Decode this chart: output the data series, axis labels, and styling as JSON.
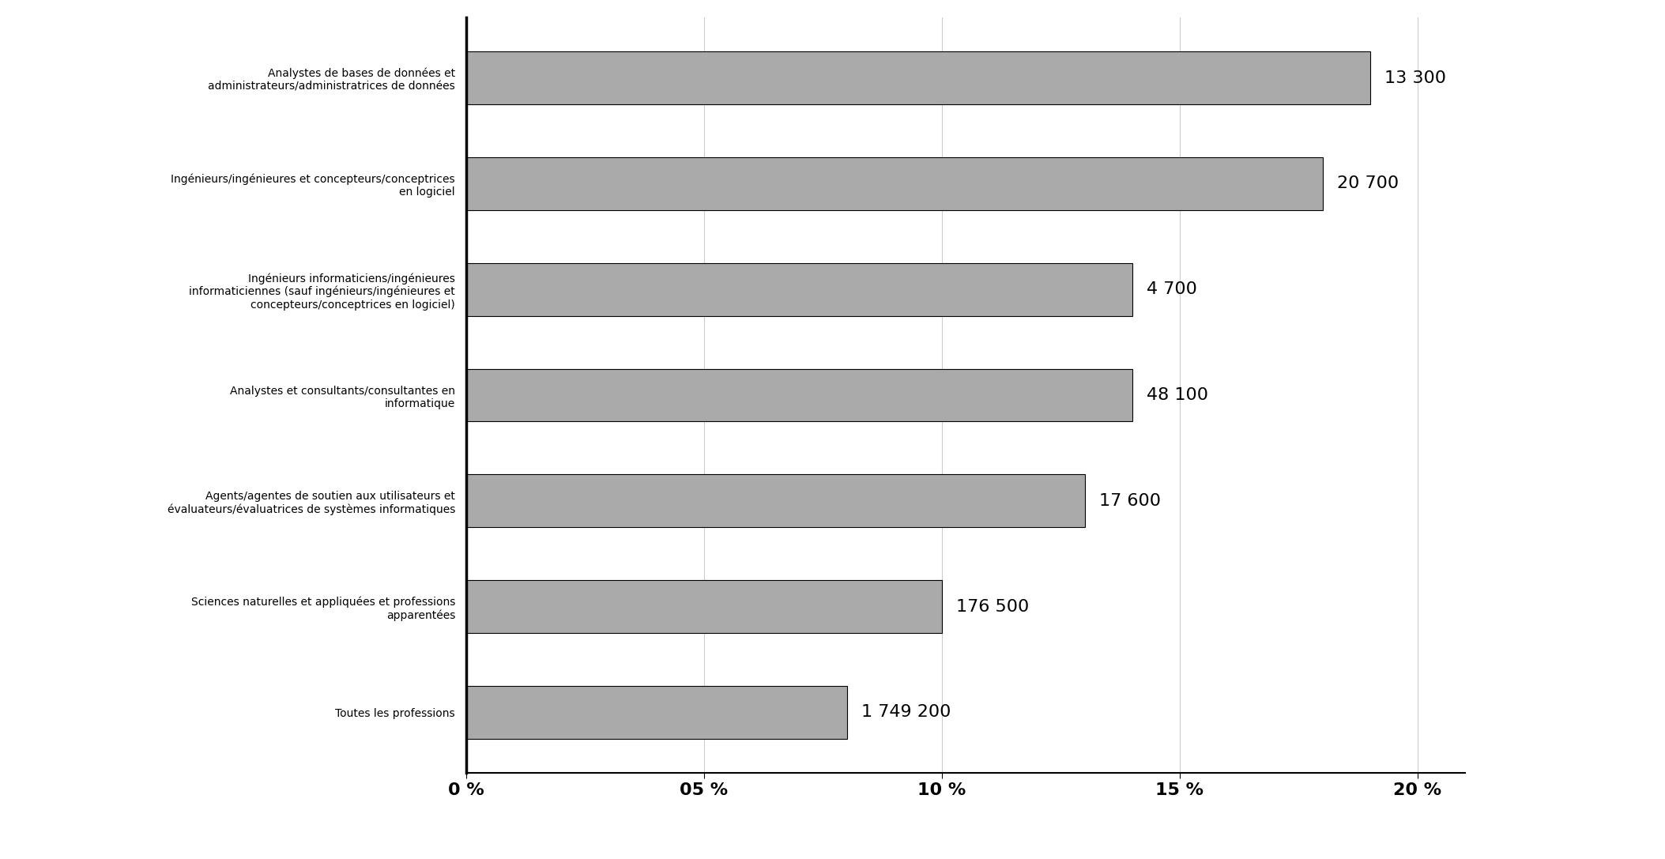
{
  "categories": [
    "Toutes les professions",
    "Sciences naturelles et appliquées et professions\napparentées",
    "Agents/agentes de soutien aux utilisateurs et\névaluateurs/évaluatrices de systèmes informatiques",
    "Analystes et consultants/consultantes en\ninformatique",
    "Ingénieurs informaticiens/ingénieures\ninformaticiennes (sauf ingénieurs/ingénieures et\nconcepteurs/conceptrices en logiciel)",
    "Ingénieurs/ingénieures et concepteurs/conceptrices\nen logiciel",
    "Analystes de bases de données et\nadministrateurs/administratrices de données"
  ],
  "values": [
    8.0,
    10.0,
    13.0,
    14.0,
    14.0,
    18.0,
    19.0
  ],
  "labels": [
    "1 749 200",
    "176 500",
    "17 600",
    "48 100",
    "4 700",
    "20 700",
    "13 300"
  ],
  "bar_color": "#AAAAAA",
  "bar_edgecolor": "#000000",
  "background_color": "#FFFFFF",
  "xlim": [
    0,
    21
  ],
  "xticks": [
    0,
    5,
    10,
    15,
    20
  ],
  "xtick_labels": [
    "0 %",
    "05 %",
    "10 %",
    "15 %",
    "20 %"
  ],
  "label_fontsize": 16,
  "tick_fontsize": 16,
  "bar_label_fontsize": 16,
  "figsize": [
    21.07,
    10.87
  ],
  "dpi": 100
}
